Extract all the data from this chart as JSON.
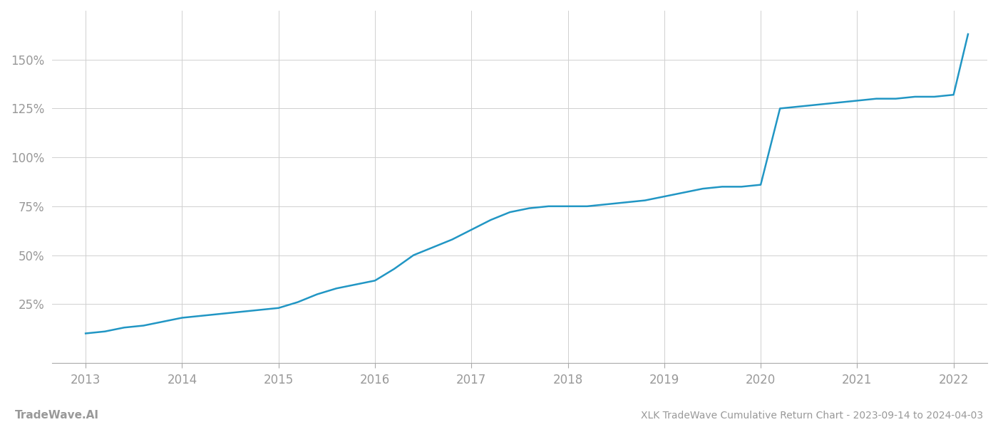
{
  "title": "XLK TradeWave Cumulative Return Chart - 2023-09-14 to 2024-04-03",
  "watermark": "TradeWave.AI",
  "line_color": "#2196c4",
  "background_color": "#ffffff",
  "grid_color": "#d0d0d0",
  "x_years": [
    2013,
    2014,
    2015,
    2016,
    2017,
    2018,
    2019,
    2020,
    2021,
    2022
  ],
  "x_values": [
    2013.0,
    2013.2,
    2013.4,
    2013.6,
    2013.8,
    2014.0,
    2014.2,
    2014.4,
    2014.6,
    2014.8,
    2015.0,
    2015.2,
    2015.4,
    2015.6,
    2015.8,
    2016.0,
    2016.2,
    2016.4,
    2016.6,
    2016.8,
    2017.0,
    2017.2,
    2017.4,
    2017.6,
    2017.8,
    2018.0,
    2018.2,
    2018.4,
    2018.6,
    2018.8,
    2019.0,
    2019.2,
    2019.4,
    2019.6,
    2019.8,
    2020.0,
    2020.2,
    2020.4,
    2020.6,
    2020.8,
    2021.0,
    2021.2,
    2021.4,
    2021.6,
    2021.8,
    2022.0,
    2022.15
  ],
  "y_values": [
    10,
    11,
    13,
    14,
    16,
    18,
    19,
    20,
    21,
    22,
    23,
    26,
    30,
    33,
    35,
    37,
    43,
    50,
    54,
    58,
    63,
    68,
    72,
    74,
    75,
    75,
    75,
    76,
    77,
    78,
    80,
    82,
    84,
    85,
    85,
    86,
    125,
    126,
    127,
    128,
    129,
    130,
    130,
    131,
    131,
    132,
    163
  ],
  "yticks": [
    25,
    50,
    75,
    100,
    125,
    150
  ],
  "ytick_labels": [
    "25%",
    "50%",
    "75%",
    "100%",
    "125%",
    "150%"
  ],
  "ylim": [
    -5,
    175
  ],
  "xlim": [
    2012.65,
    2022.35
  ],
  "title_fontsize": 10,
  "watermark_fontsize": 11,
  "tick_label_color": "#999999",
  "tick_label_fontsize": 12,
  "line_width": 1.8
}
